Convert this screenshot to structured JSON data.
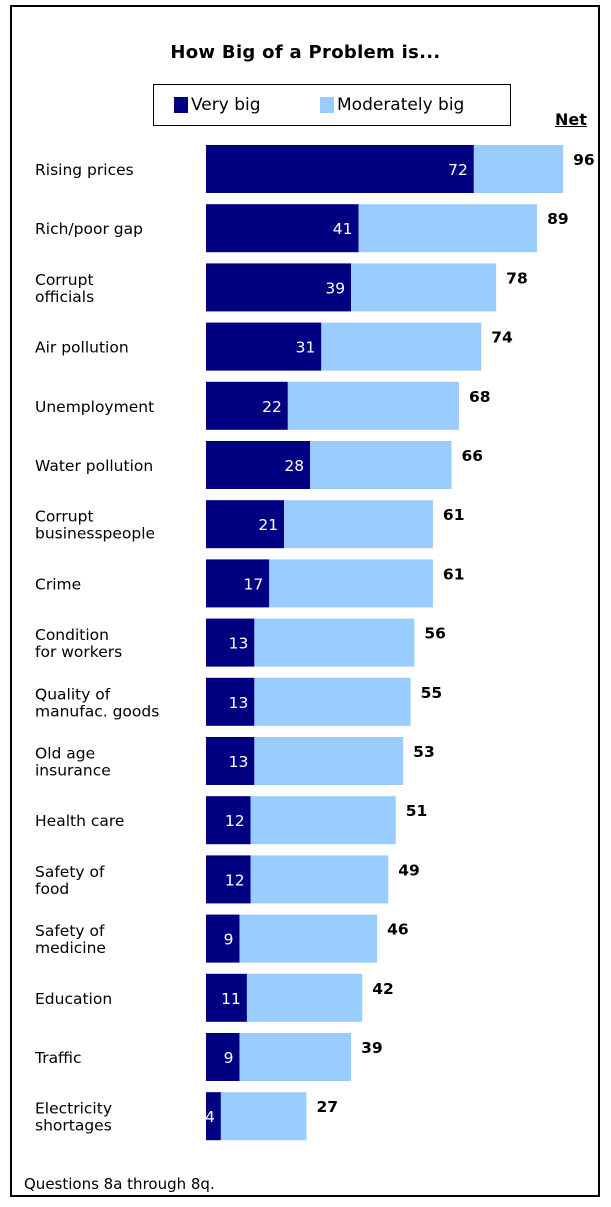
{
  "chart_data": {
    "type": "bar",
    "orientation": "horizontal",
    "stacked": true,
    "title": "How Big of a Problem is...",
    "net_header": "Net",
    "categories": [
      "Rising prices",
      "Rich/poor gap",
      "Corrupt officials",
      "Air pollution",
      "Unemployment",
      "Water pollution",
      "Corrupt businesspeople",
      "Crime",
      "Condition for workers",
      "Quality of manufac. goods",
      "Old age insurance",
      "Health care",
      "Safety of food",
      "Safety of medicine",
      "Education",
      "Traffic",
      "Electricity shortages"
    ],
    "category_lines": [
      [
        "Rising prices"
      ],
      [
        "Rich/poor gap"
      ],
      [
        "Corrupt",
        "officials"
      ],
      [
        "Air pollution"
      ],
      [
        "Unemployment"
      ],
      [
        "Water pollution"
      ],
      [
        "Corrupt",
        "businesspeople"
      ],
      [
        "Crime"
      ],
      [
        "Condition",
        "for workers"
      ],
      [
        "Quality of",
        "manufac. goods"
      ],
      [
        "Old age",
        "insurance"
      ],
      [
        "Health care"
      ],
      [
        "Safety of",
        "food"
      ],
      [
        "Safety of",
        "medicine"
      ],
      [
        "Education"
      ],
      [
        "Traffic"
      ],
      [
        "Electricity",
        "shortages"
      ]
    ],
    "series": [
      {
        "name": "Very big",
        "color": "#000080",
        "values": [
          72,
          41,
          39,
          31,
          22,
          28,
          21,
          17,
          13,
          13,
          13,
          12,
          12,
          9,
          11,
          9,
          4
        ]
      },
      {
        "name": "Moderately big",
        "color": "#99ccff",
        "values": [
          24,
          48,
          39,
          43,
          46,
          38,
          40,
          44,
          43,
          42,
          40,
          39,
          37,
          37,
          31,
          30,
          23
        ]
      }
    ],
    "net": [
      96,
      89,
      78,
      74,
      68,
      66,
      61,
      61,
      56,
      55,
      53,
      51,
      49,
      46,
      42,
      39,
      27
    ],
    "legend_position": "top",
    "grid": false,
    "xlim": [
      0,
      100
    ]
  },
  "footnote": "Questions 8a through 8q."
}
